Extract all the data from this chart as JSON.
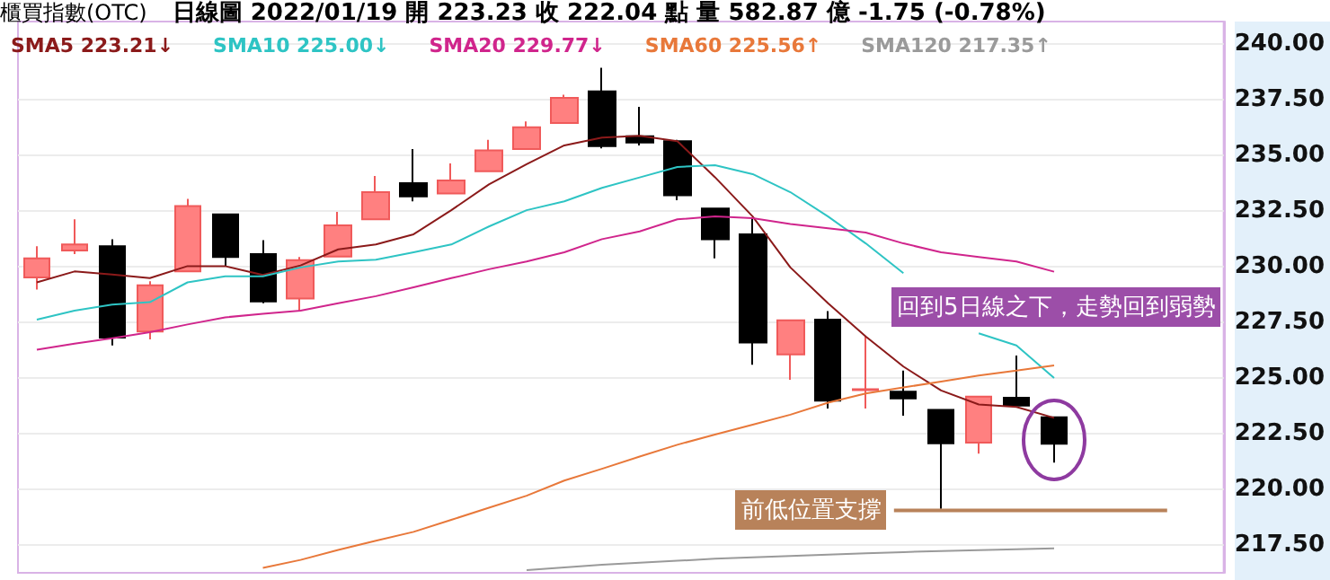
{
  "chart_data": {
    "type": "candlestick",
    "title": "櫃買指數(OTC)",
    "subtitle": "日線圖  2022/01/19  開 223.23  收 222.04  點  量 582.87 億  -1.75 (-0.78%)",
    "annotations": [
      "回到5日線之下，走勢回到弱勢"
    ],
    "categories": [
      null,
      null,
      null,
      null,
      null,
      null,
      null,
      null,
      null,
      null,
      null,
      null,
      null,
      null,
      null,
      null,
      null,
      null,
      null,
      null,
      null,
      null,
      null,
      null,
      null,
      null,
      null,
      null
    ],
    "ohlc": [
      [
        229.51,
        230.91,
        228.97,
        230.37
      ],
      [
        230.72,
        232.12,
        230.56,
        230.99
      ],
      [
        230.91,
        231.23,
        226.46,
        226.81
      ],
      [
        227.08,
        229.34,
        226.73,
        229.16
      ],
      [
        229.78,
        233.04,
        229.78,
        232.72
      ],
      [
        232.34,
        232.34,
        230.02,
        230.43
      ],
      [
        230.56,
        231.18,
        228.35,
        228.43
      ],
      [
        228.56,
        230.43,
        228.0,
        230.29
      ],
      [
        230.45,
        232.45,
        230.45,
        231.85
      ],
      [
        232.12,
        234.07,
        232.12,
        233.34
      ],
      [
        233.74,
        235.28,
        232.93,
        233.15
      ],
      [
        233.28,
        234.63,
        233.28,
        233.87
      ],
      [
        234.28,
        235.69,
        234.28,
        235.22
      ],
      [
        235.28,
        236.52,
        235.28,
        236.25
      ],
      [
        236.44,
        237.71,
        236.44,
        237.57
      ],
      [
        237.87,
        238.92,
        235.31,
        235.41
      ],
      [
        235.85,
        237.17,
        235.44,
        235.57
      ],
      [
        235.63,
        235.69,
        232.98,
        233.2
      ],
      [
        232.61,
        232.61,
        230.37,
        231.23
      ],
      [
        231.45,
        232.17,
        225.59,
        226.59
      ],
      [
        226.06,
        227.59,
        224.92,
        227.59
      ],
      [
        227.62,
        228.0,
        223.63,
        223.98
      ],
      [
        224.45,
        226.86,
        223.63,
        224.49
      ],
      [
        224.38,
        225.33,
        223.3,
        224.08
      ],
      [
        223.57,
        223.57,
        219.12,
        222.06
      ],
      [
        222.09,
        224.16,
        221.6,
        224.16
      ],
      [
        224.11,
        226.0,
        223.76,
        223.76
      ],
      [
        223.23,
        223.23,
        221.2,
        222.04
      ]
    ],
    "series": [
      {
        "type": "line",
        "name": "SMA5 223.21↓",
        "color": "#8b1a1a",
        "values": [
          229.29,
          229.78,
          229.64,
          229.48,
          230.02,
          230.02,
          229.62,
          230.05,
          230.77,
          230.99,
          231.45,
          232.53,
          233.69,
          234.6,
          235.44,
          235.79,
          235.87,
          235.63,
          234.01,
          232.25,
          229.96,
          228.35,
          226.86,
          225.51,
          224.44,
          223.81,
          223.7,
          223.21
        ]
      },
      {
        "type": "line",
        "name": "SMA10 225.00↓",
        "color": "#2ec4c4",
        "values": [
          227.62,
          228.02,
          228.29,
          228.4,
          229.29,
          229.56,
          229.56,
          229.96,
          230.23,
          230.31,
          230.64,
          230.99,
          231.8,
          232.53,
          232.93,
          233.53,
          234.0,
          234.47,
          234.55,
          234.15,
          233.34,
          232.25,
          231.04,
          229.7,
          null,
          227.0,
          226.46,
          225.0
        ]
      },
      {
        "type": "line",
        "name": "SMA20 229.77↓",
        "color": "#d0258c",
        "values": [
          226.27,
          226.54,
          226.78,
          227.05,
          227.4,
          227.72,
          227.88,
          228.02,
          228.35,
          228.67,
          229.07,
          229.48,
          229.88,
          230.23,
          230.64,
          231.23,
          231.58,
          232.12,
          232.25,
          232.17,
          231.91,
          231.72,
          231.53,
          231.04,
          230.64,
          230.43,
          230.23,
          229.77
        ]
      },
      {
        "type": "line",
        "name": "SMA60 225.56↑",
        "color": "#e8783a",
        "values": [
          null,
          null,
          null,
          null,
          null,
          null,
          216.47,
          216.83,
          217.28,
          217.69,
          218.09,
          218.63,
          219.17,
          219.71,
          220.39,
          220.92,
          221.47,
          222.0,
          222.46,
          222.9,
          223.35,
          223.89,
          224.3,
          224.57,
          224.84,
          225.11,
          225.33,
          225.56
        ]
      },
      {
        "type": "line",
        "name": "SMA120 217.35↑",
        "color": "#9a9a9a",
        "values": [
          null,
          null,
          null,
          null,
          null,
          null,
          null,
          null,
          null,
          null,
          null,
          null,
          null,
          216.37,
          216.49,
          216.61,
          216.7,
          216.79,
          216.88,
          216.95,
          217.01,
          217.07,
          217.13,
          217.18,
          217.23,
          217.27,
          217.31,
          217.35
        ]
      }
    ],
    "ylim": [
      216.25,
      241
    ],
    "yticks": [
      {
        "value": 217.5,
        "label": "217.50"
      },
      {
        "value": 220,
        "label": "220.00"
      },
      {
        "value": 222.5,
        "label": "222.50"
      },
      {
        "value": 225,
        "label": "225.00"
      },
      {
        "value": 227.5,
        "label": "227.50"
      },
      {
        "value": 230,
        "label": "230.00"
      },
      {
        "value": 232.5,
        "label": "232.50"
      },
      {
        "value": 235,
        "label": "235.00"
      },
      {
        "value": 237.5,
        "label": "237.50"
      },
      {
        "value": 240,
        "label": "240.00"
      }
    ],
    "ref_lines": [
      {
        "axis": "y",
        "value": 219.05,
        "label": "前低位置支撐",
        "color": "#b8825a",
        "line_style": "solid"
      }
    ],
    "grid": "y",
    "legend": "top left"
  }
}
